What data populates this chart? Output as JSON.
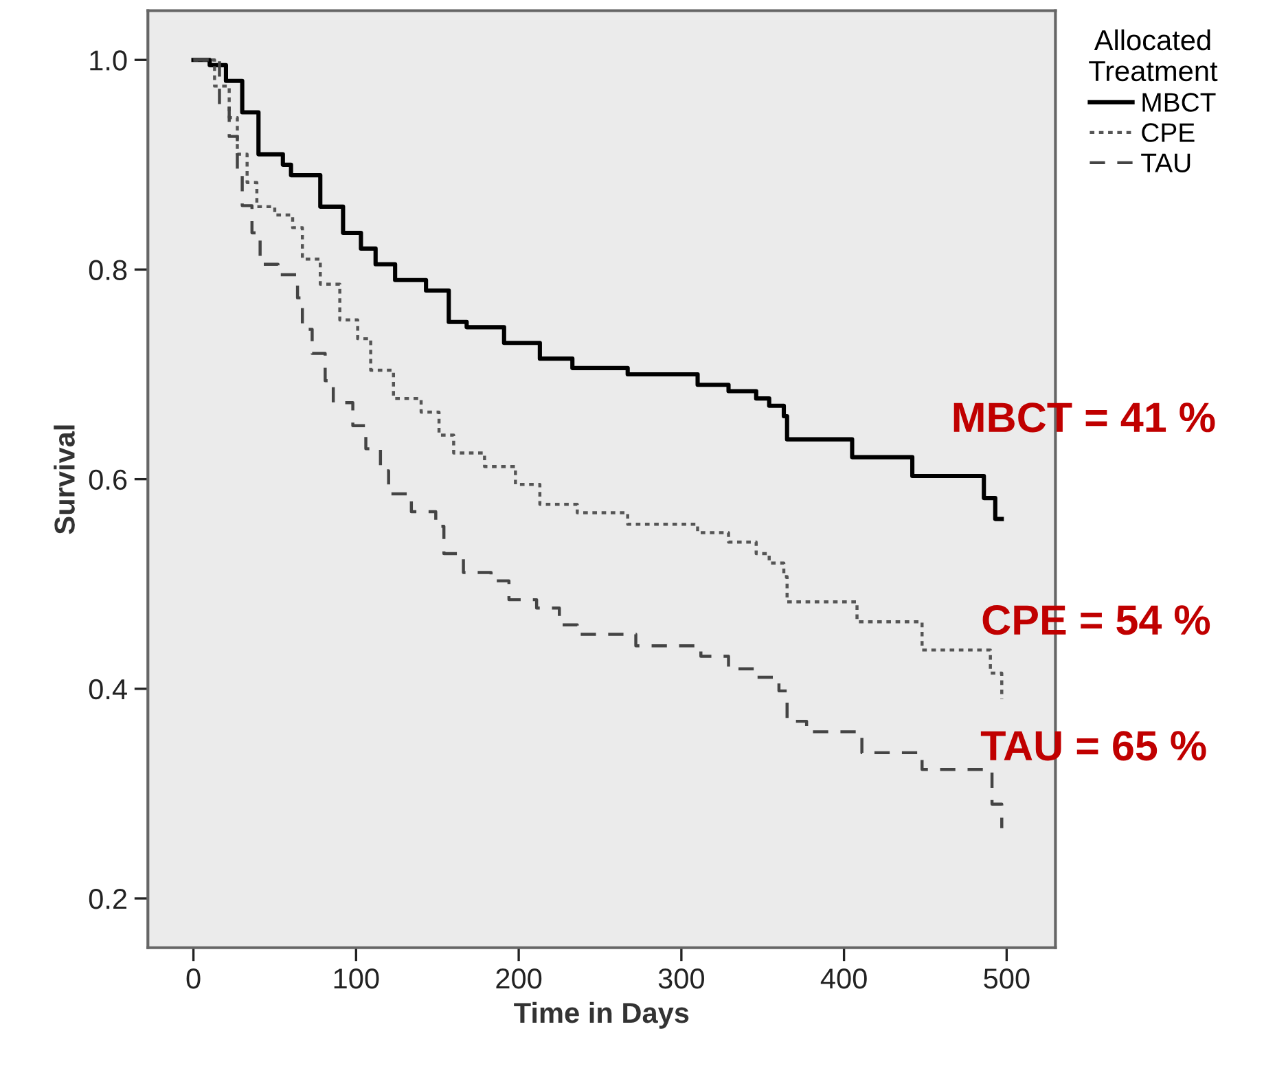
{
  "chart_data": {
    "type": "step",
    "xlabel": "Time in Days",
    "ylabel": "Survival",
    "legend_title": "Allocated\nTreatment",
    "xlim": [
      -28,
      530
    ],
    "ylim": [
      0.153,
      1.047
    ],
    "xticks": [
      0,
      100,
      200,
      300,
      400,
      500
    ],
    "yticks": [
      {
        "value": 0.2,
        "label": "0.2"
      },
      {
        "value": 0.4,
        "label": "0.4"
      },
      {
        "value": 0.6,
        "label": "0.6"
      },
      {
        "value": 0.8,
        "label": "0.8"
      },
      {
        "value": 1.0,
        "label": "1.0"
      }
    ],
    "grid": false,
    "legend": "top right",
    "marker": "none",
    "series": [
      {
        "name": "MBCT",
        "color": "#000000",
        "line_style": "solid",
        "x": [
          0,
          10,
          20,
          30,
          40,
          55,
          60,
          78,
          92,
          103,
          112,
          124,
          143,
          157,
          168,
          191,
          213,
          233,
          267,
          310,
          329,
          346,
          354,
          363,
          365,
          405,
          442,
          486,
          493,
          497
        ],
        "values": [
          1.0,
          0.995,
          0.98,
          0.95,
          0.91,
          0.9,
          0.89,
          0.86,
          0.835,
          0.82,
          0.805,
          0.79,
          0.78,
          0.75,
          0.745,
          0.73,
          0.715,
          0.706,
          0.7,
          0.69,
          0.684,
          0.677,
          0.67,
          0.66,
          0.638,
          0.621,
          0.603,
          0.582,
          0.562,
          0.562
        ]
      },
      {
        "name": "CPE",
        "color": "#555555",
        "line_style": "dotted",
        "x": [
          0,
          13,
          22,
          27,
          33,
          39,
          50,
          61,
          67,
          78,
          90,
          101,
          109,
          123,
          140,
          151,
          160,
          179,
          198,
          213,
          236,
          267,
          310,
          329,
          346,
          354,
          363,
          365,
          408,
          448,
          490,
          497
        ],
        "values": [
          1.0,
          0.975,
          0.945,
          0.91,
          0.883,
          0.86,
          0.852,
          0.84,
          0.81,
          0.786,
          0.752,
          0.734,
          0.704,
          0.677,
          0.664,
          0.642,
          0.625,
          0.612,
          0.595,
          0.576,
          0.568,
          0.557,
          0.549,
          0.54,
          0.529,
          0.52,
          0.507,
          0.483,
          0.464,
          0.437,
          0.415,
          0.39
        ]
      },
      {
        "name": "TAU",
        "color": "#444444",
        "line_style": "dashed",
        "x": [
          0,
          16,
          22,
          27,
          30,
          36,
          41,
          52,
          64,
          67,
          73,
          81,
          86,
          98,
          106,
          115,
          120,
          134,
          149,
          154,
          166,
          183,
          194,
          211,
          225,
          236,
          272,
          312,
          329,
          346,
          360,
          365,
          377,
          411,
          448,
          491,
          497
        ],
        "values": [
          1.0,
          0.957,
          0.927,
          0.891,
          0.861,
          0.835,
          0.805,
          0.795,
          0.773,
          0.743,
          0.72,
          0.694,
          0.673,
          0.651,
          0.629,
          0.608,
          0.586,
          0.569,
          0.555,
          0.529,
          0.511,
          0.503,
          0.485,
          0.477,
          0.461,
          0.452,
          0.441,
          0.431,
          0.419,
          0.411,
          0.398,
          0.369,
          0.359,
          0.339,
          0.323,
          0.29,
          0.267
        ]
      }
    ],
    "annotations": [
      "MBCT = 41 %",
      "CPE = 54 %",
      "TAU = 65 %"
    ]
  }
}
